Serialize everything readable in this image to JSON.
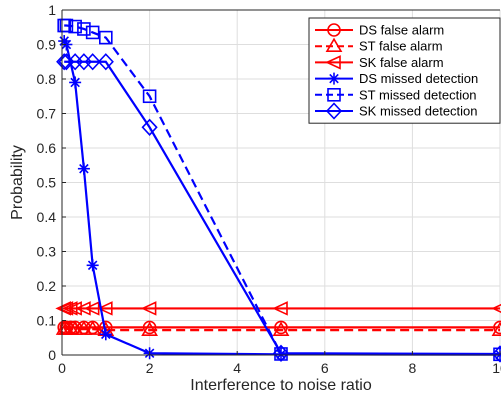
{
  "chart_data": {
    "type": "line",
    "xlabel": "Interference to noise ratio",
    "ylabel": "Probability",
    "xlim": [
      0,
      10
    ],
    "ylim": [
      0,
      1
    ],
    "x_ticks": [
      0,
      2,
      4,
      6,
      8,
      10
    ],
    "x_tick_labels": [
      "0",
      "2",
      "4",
      "6",
      "8",
      "10"
    ],
    "y_ticks": [
      0,
      0.1,
      0.2,
      0.3,
      0.4,
      0.5,
      0.6,
      0.7,
      0.8,
      0.9,
      1
    ],
    "y_tick_labels": [
      "0",
      "0.1",
      "0.2",
      "0.3",
      "0.4",
      "0.5",
      "0.6",
      "0.7",
      "0.8",
      "0.9",
      "1"
    ],
    "grid": true,
    "legend_position": "top-right",
    "series": [
      {
        "name": "DS false alarm",
        "color": "#ff0000",
        "dash": "solid",
        "marker": "circle",
        "x": [
          0.05,
          0.1,
          0.2,
          0.3,
          0.5,
          0.7,
          1,
          2,
          5,
          10
        ],
        "y": [
          0.08,
          0.08,
          0.08,
          0.08,
          0.08,
          0.08,
          0.08,
          0.08,
          0.08,
          0.08
        ]
      },
      {
        "name": "ST false alarm",
        "color": "#ff0000",
        "dash": "dashed",
        "marker": "triangle-up",
        "x": [
          0.05,
          0.1,
          0.2,
          0.3,
          0.5,
          0.7,
          1,
          2,
          5,
          10
        ],
        "y": [
          0.075,
          0.075,
          0.075,
          0.075,
          0.075,
          0.075,
          0.072,
          0.072,
          0.072,
          0.072
        ]
      },
      {
        "name": "SK false alarm",
        "color": "#ff0000",
        "dash": "solid",
        "marker": "triangle-left",
        "x": [
          0.05,
          0.1,
          0.2,
          0.3,
          0.5,
          0.7,
          1,
          2,
          5,
          10
        ],
        "y": [
          0.135,
          0.135,
          0.135,
          0.135,
          0.135,
          0.135,
          0.135,
          0.135,
          0.135,
          0.135
        ]
      },
      {
        "name": "DS missed detection",
        "color": "#0000ff",
        "dash": "solid",
        "marker": "asterisk",
        "x": [
          0.05,
          0.1,
          0.3,
          0.5,
          0.7,
          1,
          2,
          5,
          10
        ],
        "y": [
          0.91,
          0.9,
          0.79,
          0.54,
          0.26,
          0.06,
          0.005,
          0.002,
          0.001
        ]
      },
      {
        "name": "ST missed detection",
        "color": "#0000ff",
        "dash": "dashed",
        "marker": "square",
        "x": [
          0.05,
          0.1,
          0.3,
          0.5,
          0.7,
          1,
          2,
          5,
          10
        ],
        "y": [
          0.955,
          0.955,
          0.952,
          0.945,
          0.935,
          0.92,
          0.75,
          0.003,
          0.002
        ]
      },
      {
        "name": "SK missed detection",
        "color": "#0000ff",
        "dash": "solid",
        "marker": "diamond",
        "x": [
          0.05,
          0.1,
          0.3,
          0.5,
          0.7,
          1,
          2,
          5,
          10
        ],
        "y": [
          0.85,
          0.85,
          0.85,
          0.85,
          0.85,
          0.85,
          0.66,
          0.005,
          0.003
        ]
      }
    ]
  }
}
